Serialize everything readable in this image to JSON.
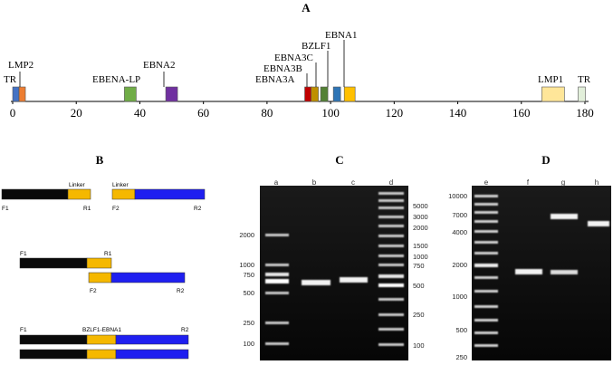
{
  "panel_a": {
    "label": "A",
    "axis": {
      "min": 0,
      "max": 180,
      "ticks": [
        0,
        20,
        40,
        60,
        80,
        100,
        120,
        140,
        160,
        180
      ]
    },
    "genes": [
      {
        "name": "TR",
        "pos": 1,
        "color": "#4472c4"
      },
      {
        "name": "LMP2",
        "pos": 3,
        "color": "#ed7d31"
      },
      {
        "name": "EBENA-LP",
        "pos": 37,
        "color": "#70ad47"
      },
      {
        "name": "EBNA2",
        "pos": 50,
        "color": "#7030a0"
      },
      {
        "name": "EBNA3A",
        "pos": 93,
        "color": "#c00000"
      },
      {
        "name": "EBNA3B",
        "pos": 95,
        "color": "#bf9000"
      },
      {
        "name": "EBNA3C",
        "pos": 98,
        "color": "#538135"
      },
      {
        "name": "BZLF1",
        "pos": 102,
        "color": "#2e75b6"
      },
      {
        "name": "EBNA1",
        "pos": 106,
        "color": "#ffc000"
      },
      {
        "name": "LMP1",
        "pos": 170,
        "color": "#ffe699"
      },
      {
        "name": "TR",
        "pos": 179,
        "color": "#e2efda"
      }
    ]
  },
  "panel_b": {
    "label": "B",
    "row1": {
      "linker1": "Linker",
      "linker2": "Linker",
      "f1": "F1",
      "r1": "R1",
      "f2": "F2",
      "r2": "R2"
    },
    "row2": {
      "f1": "F1",
      "r1": "R1",
      "f2": "F2",
      "r2": "R2"
    },
    "row3": {
      "f1": "F1",
      "fusion": "BZLF1-EBNA1",
      "r2": "R2"
    }
  },
  "panel_c": {
    "label": "C",
    "lanes": [
      "a",
      "b",
      "c",
      "d"
    ],
    "left_ladder": [
      "2000",
      "1000",
      "750",
      "500",
      "250",
      "100"
    ],
    "right_ladder": [
      "5000",
      "3000",
      "2000",
      "1500",
      "1000",
      "750",
      "500",
      "250",
      "100"
    ]
  },
  "panel_d": {
    "label": "D",
    "lanes": [
      "e",
      "f",
      "g",
      "h"
    ],
    "ladder": [
      "10000",
      "7000",
      "4000",
      "2000",
      "1000",
      "500",
      "250"
    ]
  },
  "colors": {
    "black_bar": "#0a0a0a",
    "linker": "#f5b800",
    "blue_bar": "#1f1ff0",
    "gel_bg": "#0c0c0c"
  }
}
